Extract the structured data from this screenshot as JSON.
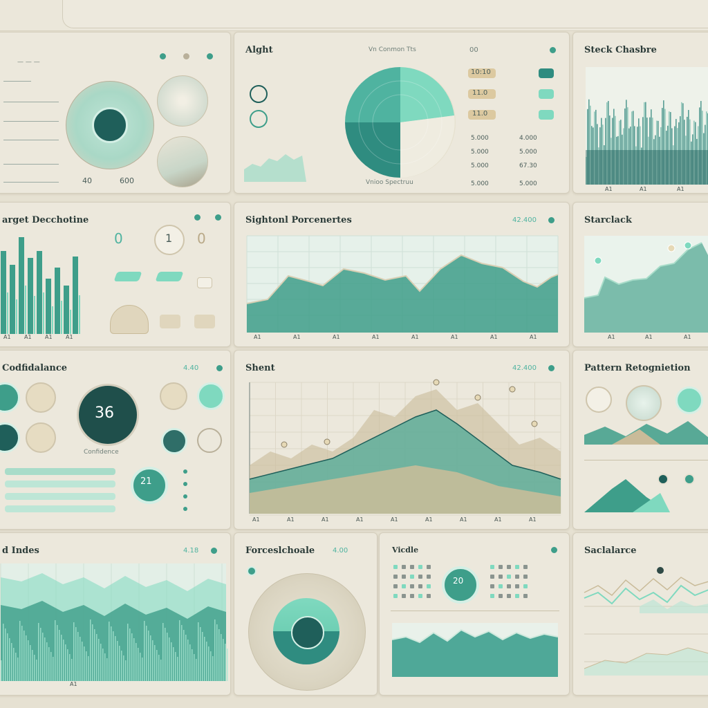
{
  "panels": {
    "p1": {
      "label_a": "40",
      "label_b": "600"
    },
    "p2": {
      "title": "Alght",
      "top_labels": [
        "Vn Conmon Tts",
        "00"
      ],
      "pills": [
        "10:10",
        "11.0",
        "11.0"
      ],
      "rows": [
        "5.000",
        "5.000",
        "5.000",
        "5.000"
      ],
      "rows_r": [
        "4.000",
        "5.000",
        "67.30",
        "5.000"
      ],
      "caption": "Vnioo Spectruu"
    },
    "p3": {
      "title": "Steck Chasbre",
      "ticks": [
        "A1",
        "A1",
        "A1"
      ]
    },
    "p4": {
      "title": "arget Decchotine",
      "ticks": [
        "A1",
        "A1",
        "A1",
        "A1"
      ],
      "gauges": [
        "0",
        "1",
        "0"
      ]
    },
    "p5": {
      "title": "Sightonl Porcenertes",
      "value": "42.400",
      "ticks": [
        "A1",
        "A1",
        "A1",
        "A1",
        "A1",
        "A1",
        "A1",
        "A1"
      ]
    },
    "p6": {
      "title": "Starclack",
      "ticks": [
        "A1",
        "A1",
        "A1"
      ]
    },
    "p7": {
      "title": "Codfidalance",
      "value": "4.40",
      "big_value": "36",
      "sub_value": "21",
      "caption": "Confidence"
    },
    "p8": {
      "title": "Shent",
      "value": "42.400",
      "ticks": [
        "A1",
        "A1",
        "A1",
        "A1",
        "A1",
        "A1",
        "A1",
        "A1",
        "A1"
      ]
    },
    "p9": {
      "title": "Pattern Retognietion"
    },
    "p10": {
      "title": "d Indes",
      "value": "4.18",
      "tick": "A1"
    },
    "p11": {
      "title": "Forceslchoale",
      "value": "4.00"
    },
    "p12": {
      "title": "Vicdle",
      "center_value": "20"
    },
    "p13": {
      "title": "Saclalarce"
    }
  },
  "colors": {
    "teal_dark": "#1f5f5a",
    "teal": "#3e9e8a",
    "mint": "#7fd9bf",
    "sand": "#c9bb99",
    "bg": "#ece8dc"
  }
}
